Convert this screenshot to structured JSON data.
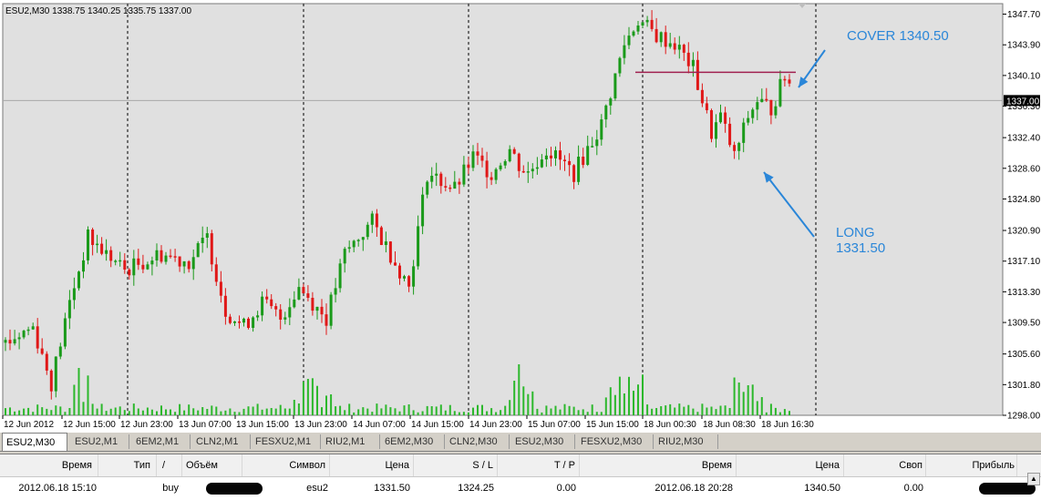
{
  "chart": {
    "symbol_header": "ESU2,M30  1338.75 1340.25 1335.75 1337.00",
    "current_price_label": "1337.00",
    "price_axis_labels": [
      "1347.70",
      "1343.90",
      "1340.10",
      "1336.30",
      "1332.40",
      "1328.60",
      "1324.80",
      "1320.90",
      "1317.10",
      "1313.30",
      "1309.50",
      "1305.60",
      "1301.80",
      "1298.00"
    ],
    "time_axis_labels": [
      "12 Jun 2012",
      "12 Jun 15:00",
      "12 Jun 23:00",
      "13 Jun 07:00",
      "13 Jun 15:00",
      "13 Jun 23:00",
      "14 Jun 07:00",
      "14 Jun 15:00",
      "14 Jun 23:00",
      "15 Jun 07:00",
      "15 Jun 15:00",
      "18 Jun 00:30",
      "18 Jun 08:30",
      "18 Jun 16:30"
    ],
    "annotation_cover": "COVER 1340.50",
    "annotation_long_1": "LONG",
    "annotation_long_2": "1331.50",
    "colors": {
      "background": "#e0e0e0",
      "bull": "#1a9a1a",
      "bear": "#e01818",
      "volume": "#2cb82c",
      "cover_line": "#a02050",
      "arrow": "#2a86d8",
      "annotation_text": "#2a86d8"
    }
  },
  "chart_data": {
    "type": "candlestick",
    "symbol": "ESU2",
    "timeframe": "M30",
    "ylim": [
      1298.0,
      1349.0
    ],
    "cover_level": 1340.5,
    "close_path": [
      [
        0,
        1307
      ],
      [
        6,
        1309
      ],
      [
        10,
        1302
      ],
      [
        14,
        1312
      ],
      [
        18,
        1320
      ],
      [
        22,
        1318
      ],
      [
        26,
        1316
      ],
      [
        30,
        1317
      ],
      [
        34,
        1318
      ],
      [
        40,
        1317
      ],
      [
        44,
        1320
      ],
      [
        48,
        1311
      ],
      [
        52,
        1309
      ],
      [
        56,
        1312
      ],
      [
        60,
        1310
      ],
      [
        64,
        1314
      ],
      [
        70,
        1310
      ],
      [
        74,
        1318
      ],
      [
        80,
        1322
      ],
      [
        84,
        1318
      ],
      [
        88,
        1314
      ],
      [
        92,
        1328
      ],
      [
        98,
        1326
      ],
      [
        102,
        1330
      ],
      [
        106,
        1328
      ],
      [
        110,
        1331
      ],
      [
        112,
        1329
      ],
      [
        114,
        1328
      ],
      [
        118,
        1331
      ],
      [
        124,
        1328
      ],
      [
        130,
        1334
      ],
      [
        135,
        1344
      ],
      [
        138,
        1347
      ],
      [
        142,
        1345
      ],
      [
        146,
        1344
      ],
      [
        150,
        1341
      ],
      [
        154,
        1333
      ],
      [
        156,
        1335
      ],
      [
        159,
        1330
      ],
      [
        162,
        1335
      ],
      [
        164,
        1337
      ],
      [
        167,
        1336
      ],
      [
        170,
        1340
      ],
      [
        172,
        1338
      ]
    ]
  },
  "tabs": [
    "ESU2,M30",
    "ESU2,M1",
    "6EM2,M1",
    "CLN2,M1",
    "FESXU2,M1",
    "RIU2,M1",
    "6EM2,M30",
    "CLN2,M30",
    "ESU2,M30",
    "FESXU2,M30",
    "RIU2,M30"
  ],
  "table": {
    "headers": [
      "Время",
      "Тип",
      "/",
      "Объём",
      "Символ",
      "Цена",
      "S / L",
      "T / P",
      "Время",
      "Цена",
      "Своп",
      "Прибыль"
    ],
    "row": {
      "open_time": "2012.06.18 15:10",
      "type": "buy",
      "symbol": "esu2",
      "price": "1331.50",
      "sl": "1324.25",
      "tp": "0.00",
      "close_time": "2012.06.18 20:28",
      "close_price": "1340.50",
      "swap": "0.00"
    }
  }
}
